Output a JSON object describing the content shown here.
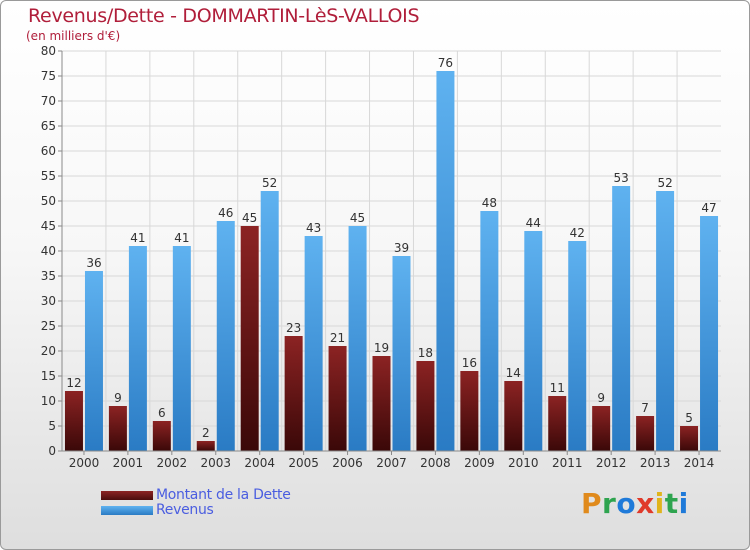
{
  "title": "Revenus/Dette - DOMMARTIN-LèS-VALLOIS",
  "subtitle": "(en milliers d'€)",
  "logo": {
    "text": "Proxiti",
    "colors": [
      "#e08a1c",
      "#2ea44f",
      "#1f7ad9",
      "#e03a2a",
      "#e0b41c",
      "#2ea44f",
      "#1f7ad9"
    ]
  },
  "colors": {
    "dette": "#7a1a1a",
    "revenus": "#3d95dd",
    "axis": "#8a8a8a",
    "grid": "#d8d8d8",
    "text": "#333333"
  },
  "legend": [
    {
      "label": "Montant de la Dette",
      "color": "#6e1313"
    },
    {
      "label": "Revenus",
      "color": "#3d95dd"
    }
  ],
  "chart_data": {
    "type": "bar",
    "categories": [
      "2000",
      "2001",
      "2002",
      "2003",
      "2004",
      "2005",
      "2006",
      "2007",
      "2008",
      "2009",
      "2010",
      "2011",
      "2012",
      "2013",
      "2014"
    ],
    "series": [
      {
        "name": "Montant de la Dette",
        "values": [
          12,
          9,
          6,
          2,
          45,
          23,
          21,
          19,
          18,
          16,
          14,
          11,
          9,
          7,
          5
        ]
      },
      {
        "name": "Revenus",
        "values": [
          36,
          41,
          41,
          46,
          52,
          43,
          45,
          39,
          76,
          48,
          44,
          42,
          53,
          52,
          47
        ]
      }
    ],
    "ylim": [
      0,
      80
    ],
    "yticks": [
      0,
      5,
      10,
      15,
      20,
      25,
      30,
      35,
      40,
      45,
      50,
      55,
      60,
      65,
      70,
      75,
      80
    ],
    "grid": true,
    "legend_position": "bottom-left"
  }
}
